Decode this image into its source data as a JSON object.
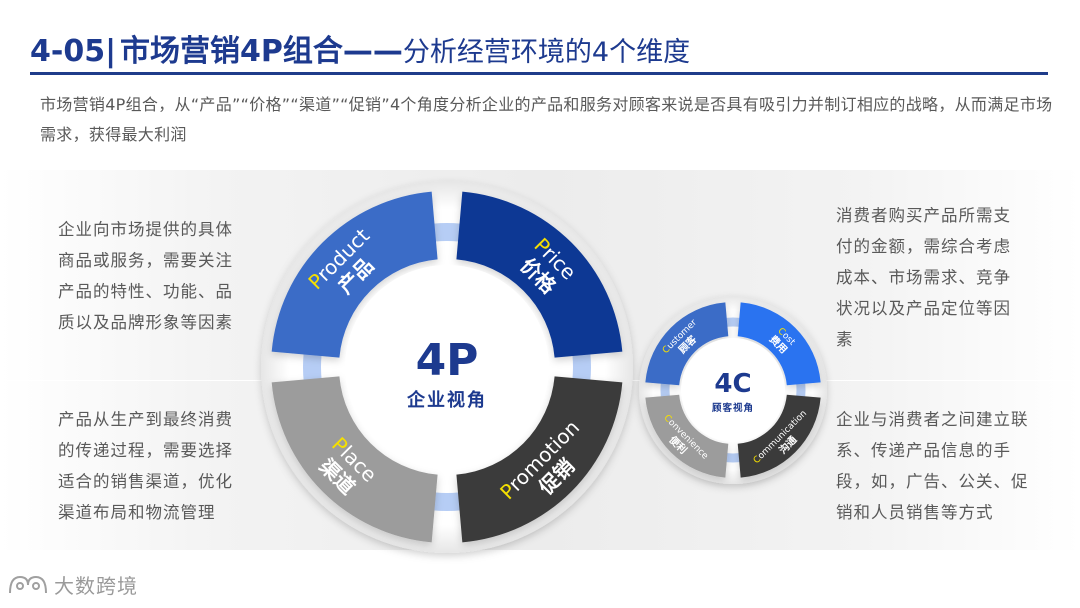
{
  "header": {
    "number": "4-05|",
    "title_main": "市场营销4P组合——",
    "title_sub": "分析经营环境的4个维度"
  },
  "intro": "市场营销4P组合，从“产品”“价格”“渠道”“促销”4个角度分析企业的产品和服务对顾客来说是否具有吸引力并制订相应的战略，从而满足市场需求，获得最大利润",
  "left_descriptions": {
    "product": "企业向市场提供的具体商品或服务，需要关注产品的特性、功能、品质以及品牌形象等因素",
    "place": "产品从生产到最终消费的传递过程，需要选择适合的销售渠道，优化渠道布局和物流管理"
  },
  "right_descriptions": {
    "price": "消费者购买产品所需支付的金额，需综合考虑成本、市场需求、竞争状况以及产品定位等因素",
    "promotion": "企业与消费者之间建立联系、传递产品信息的手段，如，广告、公关、促销和人员销售等方式"
  },
  "diagram_4p": {
    "hub_title": "4P",
    "hub_subtitle": "企业视角",
    "segments": [
      {
        "initial": "P",
        "rest": "roduct",
        "cn": "产品",
        "color": "#3b6cc7"
      },
      {
        "initial": "P",
        "rest": "rice",
        "cn": "价格",
        "color": "#0e3894"
      },
      {
        "initial": "P",
        "rest": "lace",
        "cn": "渠道",
        "color": "#9c9c9c"
      },
      {
        "initial": "P",
        "rest": "romotion",
        "cn": "促销",
        "color": "#3b3b3b"
      }
    ]
  },
  "diagram_4c": {
    "hub_title": "4C",
    "hub_subtitle": "顾客视角",
    "segments": [
      {
        "initial": "C",
        "rest": "ustomer",
        "cn": "顾客",
        "color": "#3b6cc7"
      },
      {
        "initial": "C",
        "rest": "ost",
        "cn": "费用",
        "color": "#2b73f0"
      },
      {
        "initial": "C",
        "rest": "onvenience",
        "cn": "便利",
        "color": "#9c9c9c"
      },
      {
        "initial": "C",
        "rest": "ommunication",
        "cn": "沟通",
        "color": "#3b3b3b"
      }
    ]
  },
  "logo": {
    "text": "大数跨境",
    "icon": "cat-face-icon"
  }
}
